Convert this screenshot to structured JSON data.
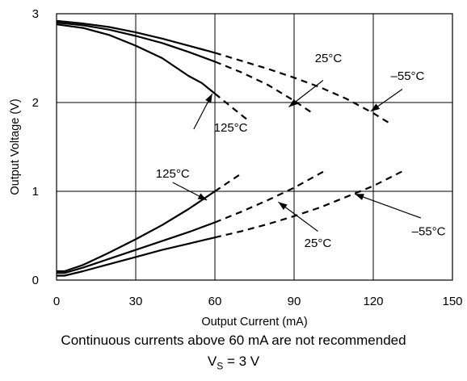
{
  "chart_data": {
    "type": "line",
    "xlabel": "Output Current (mA)",
    "ylabel": "Output Voltage (V)",
    "xlim": [
      0,
      150
    ],
    "ylim": [
      0,
      3
    ],
    "xticks": [
      "0",
      "30",
      "60",
      "90",
      "120",
      "150"
    ],
    "yticks": [
      "0",
      "1",
      "2",
      "3"
    ],
    "grid": true,
    "note_line1": "Continuous currents above 60 mA are not recommended",
    "note_line2_prefix": "V",
    "note_line2_subscript": "S",
    "note_line2_suffix": " = 3 V",
    "series": [
      {
        "label": "125°C",
        "group": "high",
        "solid_to": 60,
        "x": [
          0,
          10,
          20,
          30,
          40,
          50,
          55,
          60,
          65,
          70,
          73
        ],
        "y": [
          2.88,
          2.84,
          2.76,
          2.64,
          2.5,
          2.3,
          2.22,
          2.1,
          1.98,
          1.86,
          1.79
        ]
      },
      {
        "label": "25°C",
        "group": "high",
        "solid_to": 60,
        "x": [
          0,
          10,
          20,
          30,
          40,
          50,
          60,
          70,
          80,
          90,
          97
        ],
        "y": [
          2.9,
          2.87,
          2.82,
          2.75,
          2.67,
          2.57,
          2.46,
          2.34,
          2.2,
          2.02,
          1.88
        ]
      },
      {
        "label": "-55°C",
        "group": "high",
        "solid_to": 60,
        "x": [
          0,
          10,
          20,
          30,
          40,
          50,
          60,
          70,
          80,
          90,
          100,
          110,
          120,
          126
        ],
        "y": [
          2.92,
          2.89,
          2.85,
          2.79,
          2.72,
          2.64,
          2.56,
          2.47,
          2.38,
          2.28,
          2.17,
          2.04,
          1.88,
          1.77
        ]
      },
      {
        "label": "125°C",
        "group": "low",
        "solid_to": 60,
        "x": [
          0,
          3,
          10,
          20,
          30,
          40,
          50,
          60,
          65,
          70
        ],
        "y": [
          0.1,
          0.1,
          0.17,
          0.31,
          0.46,
          0.62,
          0.8,
          1.0,
          1.1,
          1.2
        ]
      },
      {
        "label": "25°C",
        "group": "low",
        "solid_to": 60,
        "x": [
          0,
          3,
          10,
          20,
          30,
          40,
          50,
          60,
          70,
          80,
          90,
          101
        ],
        "y": [
          0.08,
          0.08,
          0.14,
          0.24,
          0.34,
          0.44,
          0.54,
          0.65,
          0.77,
          0.9,
          1.04,
          1.22
        ]
      },
      {
        "label": "-55°C",
        "group": "low",
        "solid_to": 60,
        "x": [
          0,
          3,
          10,
          20,
          30,
          40,
          50,
          60,
          70,
          80,
          90,
          100,
          110,
          120,
          132
        ],
        "y": [
          0.05,
          0.05,
          0.1,
          0.18,
          0.26,
          0.34,
          0.41,
          0.48,
          0.55,
          0.63,
          0.72,
          0.82,
          0.94,
          1.06,
          1.24
        ]
      }
    ],
    "annotations": [
      {
        "name": "label-125c-upper",
        "text": "125°C",
        "tx": 66,
        "ty": 1.72,
        "ax": 52,
        "ay": 1.7,
        "bx": 59,
        "by": 2.1
      },
      {
        "name": "label-25c-upper",
        "text": "25°C",
        "tx": 103,
        "ty": 2.5,
        "ax": 101,
        "ay": 2.25,
        "bx": 88,
        "by": 1.95
      },
      {
        "name": "label-minus55c-upper",
        "text": "–55°C",
        "tx": 133,
        "ty": 2.3,
        "ax": 131,
        "ay": 2.15,
        "bx": 119,
        "by": 1.9
      },
      {
        "name": "label-125c-lower",
        "text": "125°C",
        "tx": 44,
        "ty": 1.2,
        "ax": 44,
        "ay": 1.1,
        "bx": 57,
        "by": 0.9
      },
      {
        "name": "label-25c-lower",
        "text": "25°C",
        "tx": 99,
        "ty": 0.42,
        "ax": 99,
        "ay": 0.55,
        "bx": 84,
        "by": 0.88
      },
      {
        "name": "label-minus55c-lower",
        "text": "–55°C",
        "tx": 141,
        "ty": 0.55,
        "ax": 138,
        "ay": 0.7,
        "bx": 113,
        "by": 0.97
      }
    ]
  }
}
